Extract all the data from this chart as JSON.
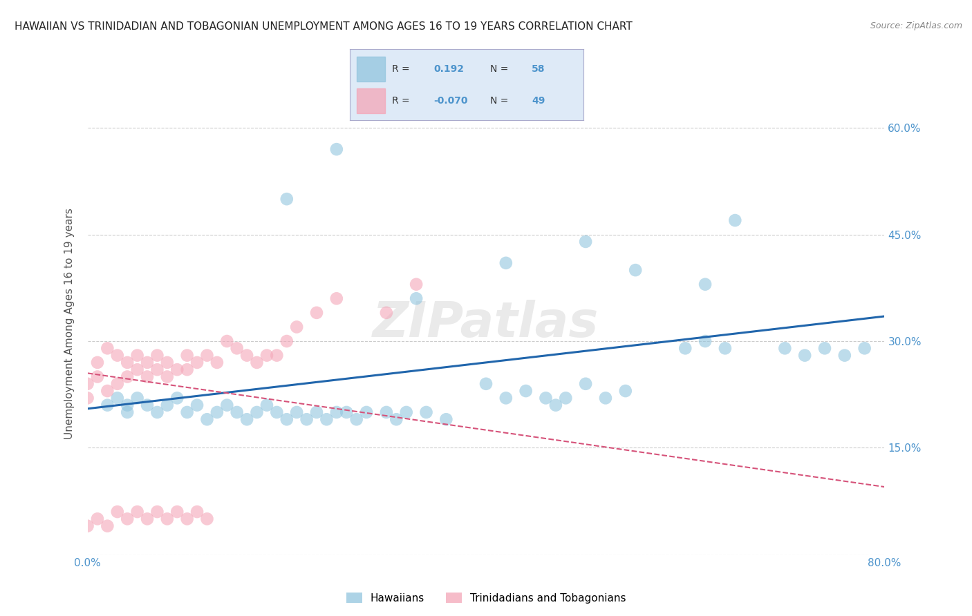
{
  "title": "HAWAIIAN VS TRINIDADIAN AND TOBAGONIAN UNEMPLOYMENT AMONG AGES 16 TO 19 YEARS CORRELATION CHART",
  "source": "Source: ZipAtlas.com",
  "ylabel": "Unemployment Among Ages 16 to 19 years",
  "x_min": 0.0,
  "x_max": 0.8,
  "y_min": 0.0,
  "y_max": 0.65,
  "x_ticks": [
    0.0,
    0.1,
    0.2,
    0.3,
    0.4,
    0.5,
    0.6,
    0.7,
    0.8
  ],
  "y_ticks": [
    0.0,
    0.15,
    0.3,
    0.45,
    0.6
  ],
  "right_y_tick_labels": [
    "15.0%",
    "30.0%",
    "45.0%",
    "60.0%"
  ],
  "right_y_ticks": [
    0.15,
    0.3,
    0.45,
    0.6
  ],
  "blue_color": "#92c5de",
  "pink_color": "#f4a6b8",
  "blue_line_color": "#2166ac",
  "pink_line_color": "#d6537a",
  "watermark": "ZIPatlas",
  "axis_color": "#4d94cc",
  "legend_box_color": "#deeaf7",
  "background_color": "#ffffff",
  "grid_color": "#cccccc",
  "hawaiian_x": [
    0.02,
    0.03,
    0.04,
    0.04,
    0.05,
    0.06,
    0.07,
    0.08,
    0.09,
    0.1,
    0.11,
    0.12,
    0.13,
    0.14,
    0.15,
    0.16,
    0.17,
    0.18,
    0.19,
    0.2,
    0.21,
    0.22,
    0.23,
    0.24,
    0.25,
    0.26,
    0.27,
    0.28,
    0.3,
    0.31,
    0.32,
    0.34,
    0.36,
    0.4,
    0.42,
    0.44,
    0.46,
    0.47,
    0.48,
    0.5,
    0.52,
    0.54,
    0.6,
    0.62,
    0.64,
    0.7,
    0.72,
    0.74,
    0.76,
    0.78,
    0.33,
    0.2,
    0.25,
    0.55,
    0.5,
    0.62,
    0.65,
    0.42
  ],
  "hawaiian_y": [
    0.21,
    0.22,
    0.2,
    0.21,
    0.22,
    0.21,
    0.2,
    0.21,
    0.22,
    0.2,
    0.21,
    0.19,
    0.2,
    0.21,
    0.2,
    0.19,
    0.2,
    0.21,
    0.2,
    0.19,
    0.2,
    0.19,
    0.2,
    0.19,
    0.2,
    0.2,
    0.19,
    0.2,
    0.2,
    0.19,
    0.2,
    0.2,
    0.19,
    0.24,
    0.22,
    0.23,
    0.22,
    0.21,
    0.22,
    0.24,
    0.22,
    0.23,
    0.29,
    0.3,
    0.29,
    0.29,
    0.28,
    0.29,
    0.28,
    0.29,
    0.36,
    0.5,
    0.57,
    0.4,
    0.44,
    0.38,
    0.47,
    0.41
  ],
  "trini_x": [
    0.0,
    0.0,
    0.01,
    0.01,
    0.02,
    0.02,
    0.03,
    0.03,
    0.04,
    0.04,
    0.05,
    0.05,
    0.06,
    0.06,
    0.07,
    0.07,
    0.08,
    0.08,
    0.09,
    0.1,
    0.1,
    0.11,
    0.12,
    0.13,
    0.14,
    0.15,
    0.16,
    0.17,
    0.18,
    0.19,
    0.2,
    0.21,
    0.23,
    0.25,
    0.3,
    0.33,
    0.0,
    0.01,
    0.02,
    0.03,
    0.04,
    0.05,
    0.06,
    0.07,
    0.08,
    0.09,
    0.1,
    0.11,
    0.12
  ],
  "trini_y": [
    0.22,
    0.24,
    0.25,
    0.27,
    0.23,
    0.29,
    0.24,
    0.28,
    0.25,
    0.27,
    0.26,
    0.28,
    0.25,
    0.27,
    0.26,
    0.28,
    0.25,
    0.27,
    0.26,
    0.26,
    0.28,
    0.27,
    0.28,
    0.27,
    0.3,
    0.29,
    0.28,
    0.27,
    0.28,
    0.28,
    0.3,
    0.32,
    0.34,
    0.36,
    0.34,
    0.38,
    0.04,
    0.05,
    0.04,
    0.06,
    0.05,
    0.06,
    0.05,
    0.06,
    0.05,
    0.06,
    0.05,
    0.06,
    0.05
  ],
  "blue_trendline_y_start": 0.205,
  "blue_trendline_y_end": 0.335,
  "pink_trendline_y_start": 0.255,
  "pink_trendline_y_end": 0.095
}
